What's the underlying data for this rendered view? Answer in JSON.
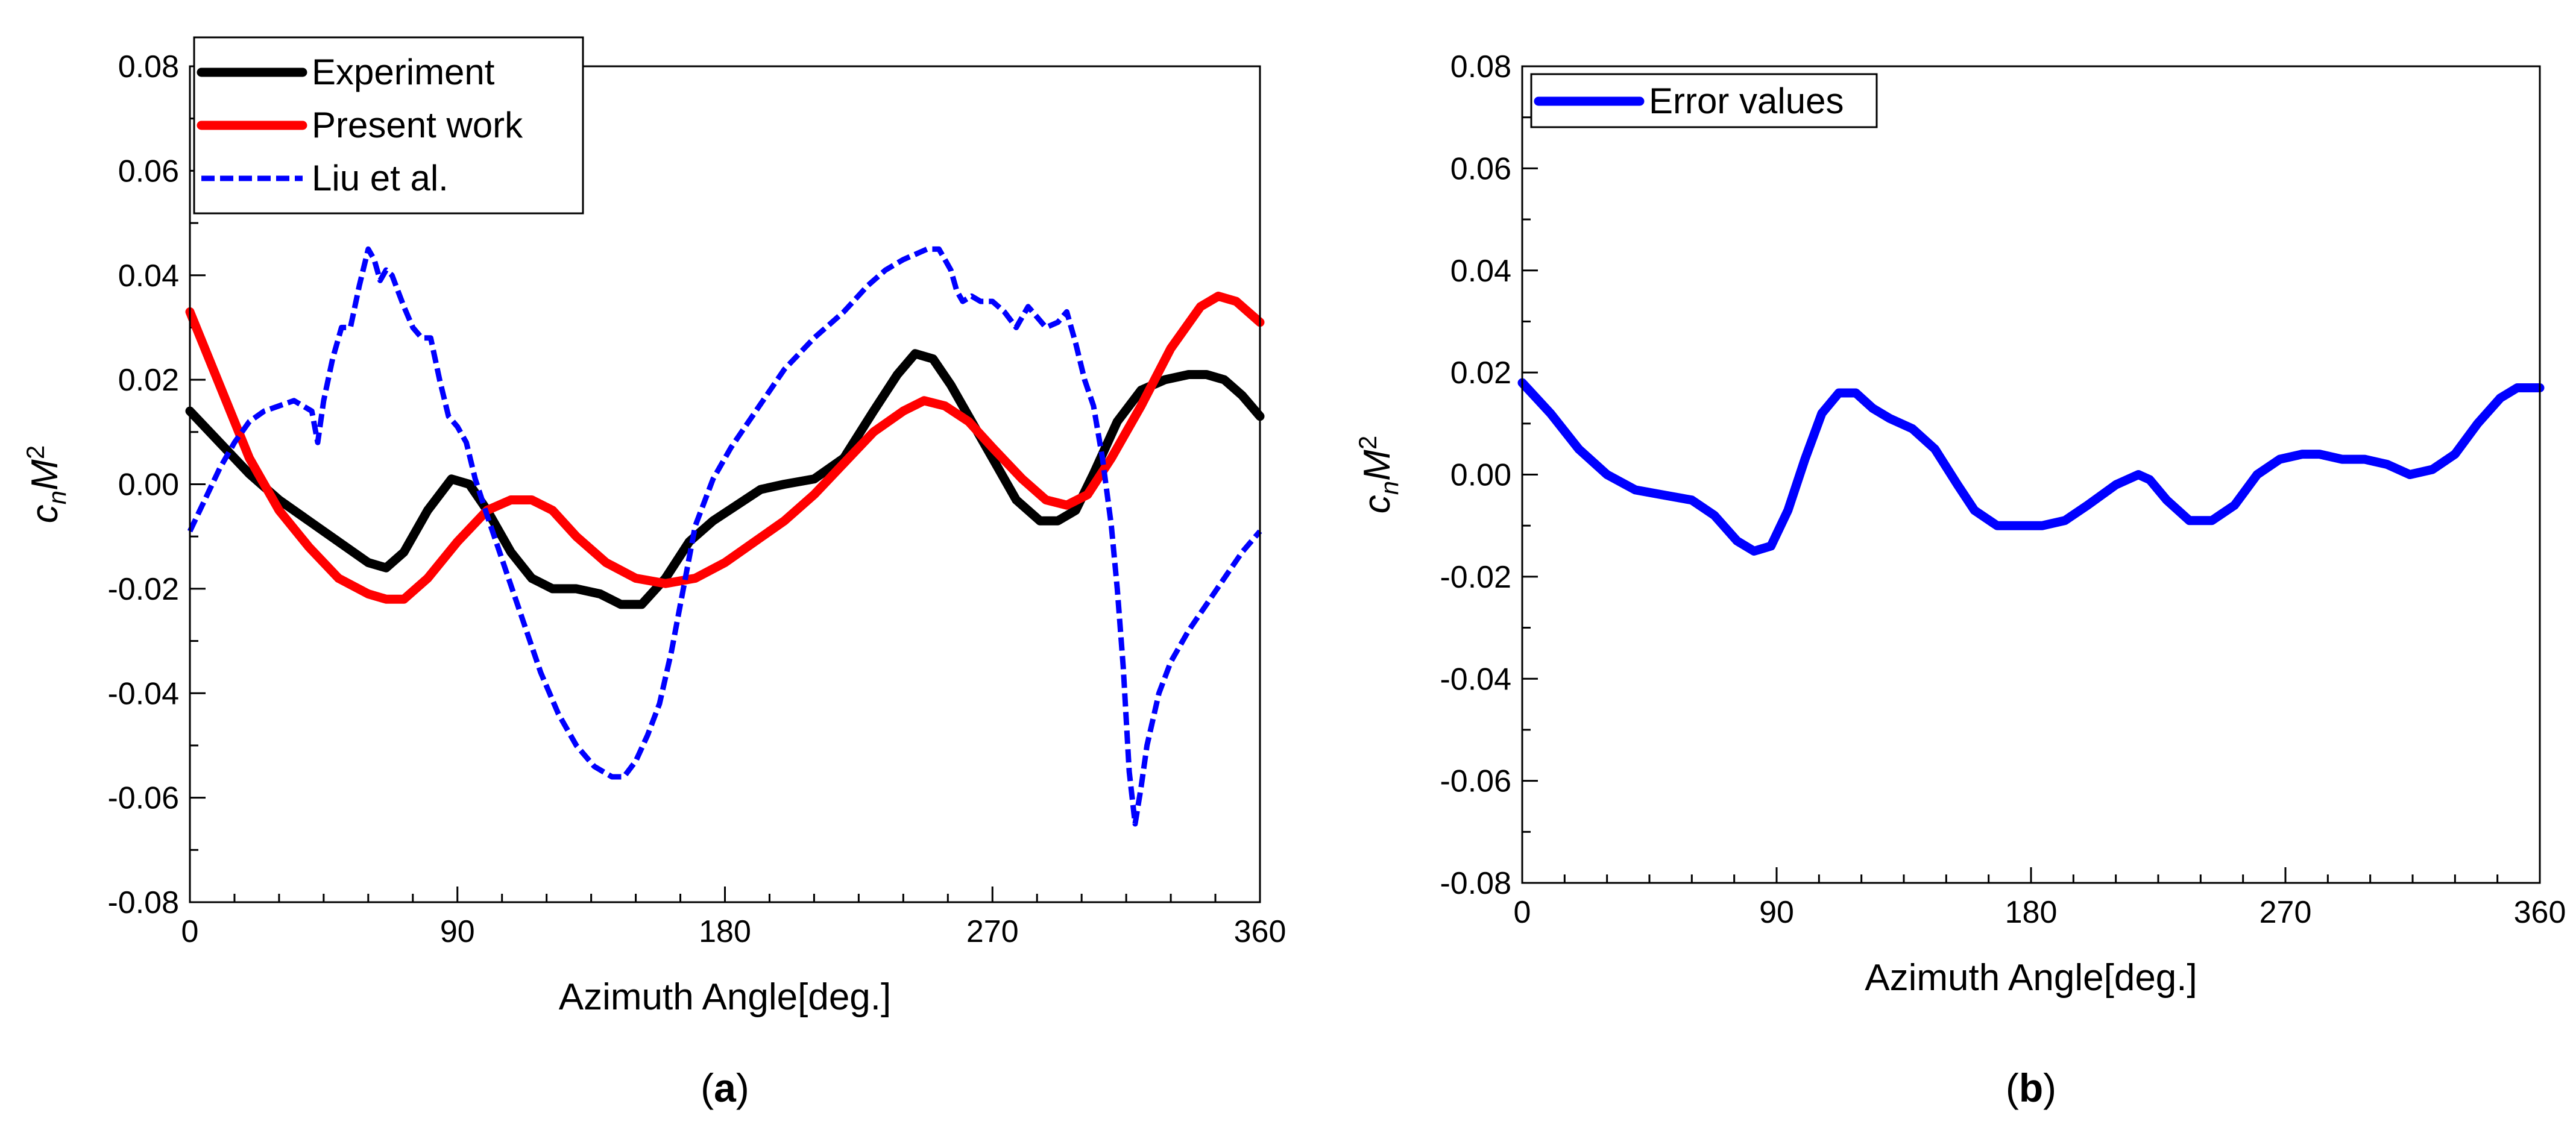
{
  "chart_data": [
    {
      "type": "line",
      "panel_label": "a",
      "xlabel": "Azimuth Angle[deg.]",
      "ylabel_main": "c",
      "ylabel_sub": "n",
      "ylabel_tail": "M",
      "ylabel_sup": "2",
      "xlim": [
        0,
        360
      ],
      "ylim": [
        -0.08,
        0.08
      ],
      "xticks": [
        "0",
        "90",
        "180",
        "270",
        "360"
      ],
      "yticks": [
        "-0.08",
        "-0.06",
        "-0.04",
        "-0.02",
        "0.00",
        "0.02",
        "0.04",
        "0.06",
        "0.08"
      ],
      "legend_position": "top-left",
      "series": [
        {
          "name": "Experiment",
          "color": "#000000",
          "style": "solid",
          "x": [
            0,
            10,
            20,
            30,
            40,
            50,
            60,
            66,
            72,
            80,
            88,
            94,
            100,
            108,
            115,
            122,
            130,
            138,
            145,
            152,
            160,
            168,
            176,
            184,
            192,
            200,
            210,
            220,
            230,
            238,
            244,
            250,
            256,
            262,
            270,
            278,
            286,
            292,
            298,
            304,
            312,
            320,
            328,
            336,
            342,
            348,
            354,
            360
          ],
          "y": [
            0.014,
            0.008,
            0.002,
            -0.003,
            -0.007,
            -0.011,
            -0.015,
            -0.016,
            -0.013,
            -0.005,
            0.001,
            0.0,
            -0.005,
            -0.013,
            -0.018,
            -0.02,
            -0.02,
            -0.021,
            -0.023,
            -0.023,
            -0.018,
            -0.011,
            -0.007,
            -0.004,
            -0.001,
            0.0,
            0.001,
            0.005,
            0.014,
            0.021,
            0.025,
            0.024,
            0.019,
            0.013,
            0.005,
            -0.003,
            -0.007,
            -0.007,
            -0.005,
            0.002,
            0.012,
            0.018,
            0.02,
            0.021,
            0.021,
            0.02,
            0.017,
            0.013
          ]
        },
        {
          "name": "Present work",
          "color": "#ff0000",
          "style": "solid",
          "x": [
            0,
            10,
            20,
            30,
            40,
            50,
            60,
            66,
            72,
            80,
            90,
            100,
            108,
            115,
            122,
            130,
            140,
            150,
            160,
            170,
            180,
            190,
            200,
            210,
            220,
            230,
            240,
            247,
            254,
            262,
            270,
            280,
            288,
            295,
            302,
            310,
            320,
            330,
            340,
            346,
            352,
            360
          ],
          "y": [
            0.033,
            0.019,
            0.005,
            -0.005,
            -0.012,
            -0.018,
            -0.021,
            -0.022,
            -0.022,
            -0.018,
            -0.011,
            -0.005,
            -0.003,
            -0.003,
            -0.005,
            -0.01,
            -0.015,
            -0.018,
            -0.019,
            -0.018,
            -0.015,
            -0.011,
            -0.007,
            -0.002,
            0.004,
            0.01,
            0.014,
            0.016,
            0.015,
            0.012,
            0.007,
            0.001,
            -0.003,
            -0.004,
            -0.002,
            0.005,
            0.015,
            0.026,
            0.034,
            0.036,
            0.035,
            0.031
          ]
        },
        {
          "name": "Liu et al.",
          "color": "#0000ff",
          "style": "dashed",
          "x": [
            0,
            5,
            10,
            15,
            20,
            25,
            30,
            35,
            38,
            41,
            43,
            45,
            48,
            51,
            54,
            57,
            60,
            62,
            64,
            66,
            68,
            70,
            72,
            75,
            78,
            81,
            84,
            87,
            90,
            93,
            96,
            100,
            106,
            112,
            118,
            124,
            130,
            136,
            142,
            146,
            150,
            154,
            158,
            162,
            166,
            170,
            176,
            182,
            188,
            194,
            200,
            210,
            220,
            228,
            234,
            240,
            244,
            248,
            252,
            254,
            256,
            258,
            260,
            263,
            266,
            270,
            274,
            278,
            282,
            285,
            288,
            292,
            295,
            298,
            301,
            304,
            307,
            310,
            312,
            314,
            316,
            318,
            320,
            322,
            324,
            326,
            330,
            336,
            342,
            348,
            354,
            360
          ],
          "y": [
            -0.009,
            -0.003,
            0.003,
            0.008,
            0.012,
            0.014,
            0.015,
            0.016,
            0.015,
            0.014,
            0.008,
            0.016,
            0.024,
            0.03,
            0.03,
            0.038,
            0.045,
            0.043,
            0.039,
            0.041,
            0.04,
            0.037,
            0.034,
            0.03,
            0.028,
            0.028,
            0.02,
            0.013,
            0.011,
            0.008,
            0.001,
            -0.006,
            -0.016,
            -0.026,
            -0.036,
            -0.044,
            -0.05,
            -0.054,
            -0.056,
            -0.056,
            -0.053,
            -0.048,
            -0.042,
            -0.032,
            -0.02,
            -0.008,
            0.001,
            0.007,
            0.012,
            0.017,
            0.022,
            0.028,
            0.033,
            0.038,
            0.041,
            0.043,
            0.044,
            0.045,
            0.045,
            0.043,
            0.041,
            0.037,
            0.035,
            0.036,
            0.035,
            0.035,
            0.033,
            0.03,
            0.034,
            0.032,
            0.03,
            0.031,
            0.033,
            0.027,
            0.02,
            0.015,
            0.005,
            -0.008,
            -0.02,
            -0.035,
            -0.055,
            -0.065,
            -0.058,
            -0.05,
            -0.045,
            -0.04,
            -0.034,
            -0.028,
            -0.023,
            -0.018,
            -0.013,
            -0.009
          ]
        }
      ]
    },
    {
      "type": "line",
      "panel_label": "b",
      "xlabel": "Azimuth Angle[deg.]",
      "ylabel_main": "c",
      "ylabel_sub": "n",
      "ylabel_tail": "M",
      "ylabel_sup": "2",
      "xlim": [
        0,
        360
      ],
      "ylim": [
        -0.08,
        0.08
      ],
      "xticks": [
        "0",
        "90",
        "180",
        "270",
        "360"
      ],
      "yticks": [
        "-0.08",
        "-0.06",
        "-0.04",
        "-0.02",
        "0.00",
        "0.02",
        "0.04",
        "0.06",
        "0.08"
      ],
      "legend_position": "top-left",
      "series": [
        {
          "name": "Error values",
          "color": "#0000ff",
          "style": "solid",
          "x": [
            0,
            10,
            20,
            30,
            40,
            50,
            60,
            68,
            76,
            82,
            88,
            94,
            100,
            106,
            112,
            118,
            124,
            130,
            138,
            146,
            154,
            160,
            168,
            176,
            184,
            192,
            200,
            210,
            218,
            222,
            228,
            236,
            244,
            252,
            260,
            268,
            276,
            282,
            290,
            298,
            306,
            314,
            322,
            330,
            338,
            346,
            352,
            360
          ],
          "y": [
            0.018,
            0.012,
            0.005,
            0.0,
            -0.003,
            -0.004,
            -0.005,
            -0.008,
            -0.013,
            -0.015,
            -0.014,
            -0.007,
            0.003,
            0.012,
            0.016,
            0.016,
            0.013,
            0.011,
            0.009,
            0.005,
            -0.002,
            -0.007,
            -0.01,
            -0.01,
            -0.01,
            -0.009,
            -0.006,
            -0.002,
            0.0,
            -0.001,
            -0.005,
            -0.009,
            -0.009,
            -0.006,
            0.0,
            0.003,
            0.004,
            0.004,
            0.003,
            0.003,
            0.002,
            0.0,
            0.001,
            0.004,
            0.01,
            0.015,
            0.017,
            0.017
          ]
        }
      ]
    }
  ]
}
